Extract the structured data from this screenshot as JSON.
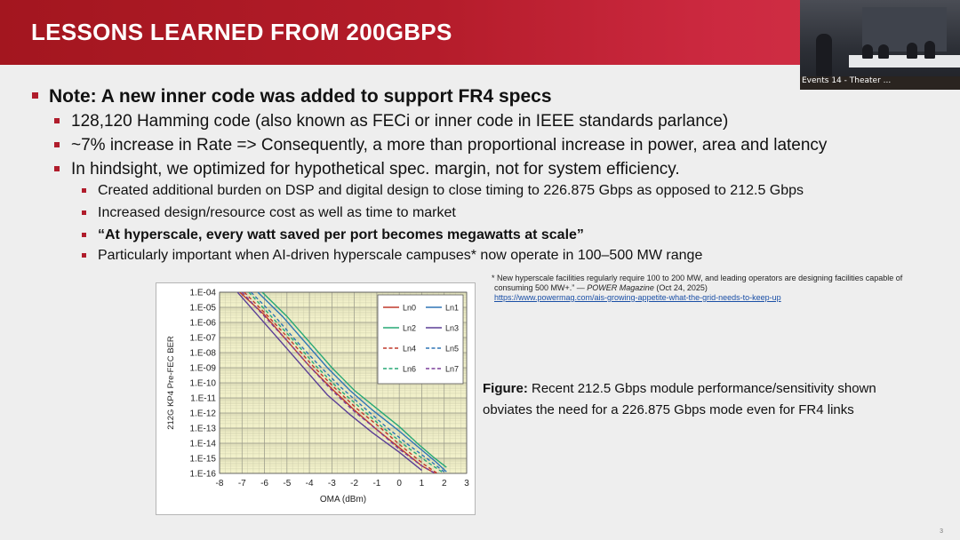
{
  "slide": {
    "title": "LESSONS LEARNED FROM 200GBPS",
    "page_number": "3"
  },
  "video": {
    "label": "Events 14 - Theater ..."
  },
  "bullets": [
    {
      "level": 1,
      "text": "Note: A new inner code was added to support FR4 specs"
    },
    {
      "level": 2,
      "text": "128,120 Hamming code (also known as FECi or inner code in IEEE standards parlance)"
    },
    {
      "level": 2,
      "text": "~7% increase in Rate => Consequently, a more than proportional increase in power, area and latency"
    },
    {
      "level": 2,
      "text": "In hindsight, we optimized for hypothetical spec. margin, not for system efficiency."
    },
    {
      "level": 3,
      "text": "Created additional burden on DSP and digital design to close timing to 226.875 Gbps as opposed to 212.5 Gbps"
    },
    {
      "level": 3,
      "text": "Increased design/resource cost as well as time to market"
    },
    {
      "level": 3,
      "text": "“At hyperscale, every watt saved per port becomes megawatts at scale”",
      "bold": true
    },
    {
      "level": 3,
      "text": "Particularly important when AI-driven hyperscale campuses* now operate in 100–500 MW range"
    }
  ],
  "footnote": {
    "line1": "* New hyperscale facilities regularly require 100 to 200 MW, and leading operators are designing facilities capable of",
    "line2_prefix": "consuming 500 MW+.” — ",
    "source": "POWER Magazine",
    "date": " (Oct 24, 2025)",
    "link": "https://www.powermag.com/ais-growing-appetite-what-the-grid-needs-to-keep-up"
  },
  "caption": {
    "label": "Figure:",
    "text": " Recent 212.5 Gbps module performance/sensitivity shown obviates the need for a 226.875 Gbps mode even for FR4 links"
  },
  "colors": {
    "accent_red": "#b01c2b",
    "grid_fill": "#f1f0c9"
  },
  "chart_data": {
    "type": "line",
    "xlabel": "OMA (dBm)",
    "ylabel": "212G KP4 Pre-FEC BER",
    "xlim": [
      -8,
      3
    ],
    "ylim_log10": [
      -16,
      -4
    ],
    "y_scale": "log",
    "x_ticks": [
      "-8",
      "-7",
      "-6",
      "-5",
      "-4",
      "-3",
      "-2",
      "-1",
      "0",
      "1",
      "2",
      "3"
    ],
    "y_ticks": [
      "1.E-04",
      "1.E-05",
      "1.E-06",
      "1.E-07",
      "1.E-08",
      "1.E-09",
      "1.E-10",
      "1.E-11",
      "1.E-12",
      "1.E-13",
      "1.E-14",
      "1.E-15",
      "1.E-16"
    ],
    "grid": true,
    "legend_position": "top-right",
    "series": [
      {
        "name": "Ln0",
        "color": "#c0392b",
        "dash": false,
        "x": [
          -7.1,
          -6,
          -5,
          -4,
          -3,
          -2,
          -1,
          0,
          1,
          1.6
        ],
        "y": [
          -4,
          -5.5,
          -7.2,
          -8.9,
          -10.4,
          -11.8,
          -13.1,
          -14.3,
          -15.5,
          -16
        ]
      },
      {
        "name": "Ln1",
        "color": "#2e75b6",
        "dash": false,
        "x": [
          -6.3,
          -5.2,
          -4.2,
          -3.2,
          -2.2,
          -1.2,
          0,
          0.8,
          1.6,
          2.1
        ],
        "y": [
          -4,
          -5.6,
          -7.3,
          -9,
          -10.5,
          -11.8,
          -13.2,
          -14.2,
          -15.2,
          -15.9
        ]
      },
      {
        "name": "Ln2",
        "color": "#27a876",
        "dash": false,
        "x": [
          -6.1,
          -5,
          -4,
          -3,
          -2,
          -1,
          0,
          0.8,
          1.5,
          2.1
        ],
        "y": [
          -4,
          -5.6,
          -7.3,
          -9,
          -10.5,
          -11.7,
          -12.9,
          -14,
          -14.9,
          -15.6
        ]
      },
      {
        "name": "Ln3",
        "color": "#5b3e96",
        "dash": false,
        "x": [
          -7.2,
          -6.2,
          -5.2,
          -4.2,
          -3.2,
          -2.2,
          -1.2,
          0,
          1
        ],
        "y": [
          -4,
          -5.7,
          -7.4,
          -9.1,
          -10.8,
          -12.1,
          -13.3,
          -14.6,
          -15.8
        ]
      },
      {
        "name": "Ln4",
        "color": "#c0392b",
        "dash": true,
        "x": [
          -6.9,
          -5.9,
          -4.9,
          -3.9,
          -2.9,
          -1.9,
          -0.9,
          0.1,
          1.1,
          1.7
        ],
        "y": [
          -4,
          -5.5,
          -7.1,
          -8.8,
          -10.3,
          -11.7,
          -12.9,
          -14.2,
          -15.4,
          -16
        ]
      },
      {
        "name": "Ln5",
        "color": "#2e75b6",
        "dash": true,
        "x": [
          -6.6,
          -5.6,
          -4.6,
          -3.6,
          -2.6,
          -1.6,
          -0.6,
          0.4,
          1.4,
          2
        ],
        "y": [
          -4,
          -5.5,
          -7.2,
          -8.8,
          -10.3,
          -11.6,
          -12.9,
          -14.1,
          -15.2,
          -15.9
        ]
      },
      {
        "name": "Ln6",
        "color": "#27a876",
        "dash": true,
        "x": [
          -6.7,
          -5.7,
          -4.7,
          -3.7,
          -2.7,
          -1.7,
          -0.7,
          0.3,
          1.3,
          1.9
        ],
        "y": [
          -4,
          -5.6,
          -7.2,
          -8.9,
          -10.4,
          -11.7,
          -13,
          -14.2,
          -15.3,
          -15.9
        ]
      },
      {
        "name": "Ln7",
        "color": "#7b3f9a",
        "dash": true,
        "x": [
          -7,
          -6,
          -5,
          -4,
          -3,
          -2,
          -1,
          0,
          1,
          1.6
        ],
        "y": [
          -4,
          -5.6,
          -7.2,
          -8.9,
          -10.5,
          -11.9,
          -13.1,
          -14.4,
          -15.5,
          -16
        ]
      }
    ]
  }
}
